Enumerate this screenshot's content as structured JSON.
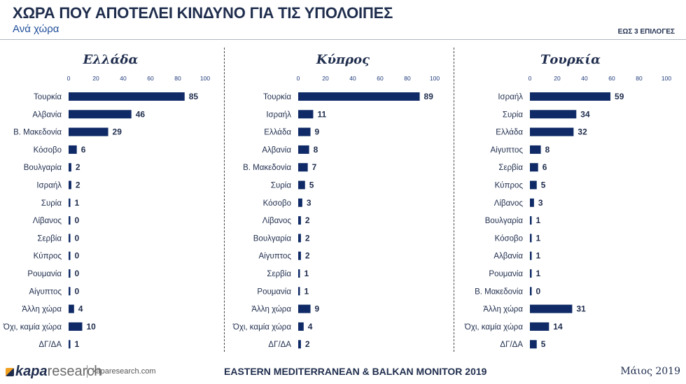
{
  "header": {
    "title": "ΧΩΡΑ ΠΟΥ ΑΠΟΤΕΛΕΙ ΚΙΝΔΥΝΟ ΓΙΑ ΤΙΣ ΥΠΟΛΟΙΠΕΣ",
    "subtitle": "Ανά χώρα",
    "note": "ΕΩΣ 3 ΕΠΙΛΟΓΕΣ"
  },
  "footer": {
    "logo_brand": "kapa",
    "logo_suffix": "research",
    "site": "kaparesearch.com",
    "monitor": "EASTERN MEDITERRANEAN & BALKAN MONITOR 2019",
    "date": "Μάιος 2019"
  },
  "colors": {
    "bar": "#0f2a66",
    "text": "#1f2d4d"
  },
  "chart_data": [
    {
      "type": "bar",
      "orientation": "horizontal",
      "title": "Ελλάδα",
      "xlim": [
        0,
        100
      ],
      "ticks": [
        0,
        20,
        40,
        60,
        80,
        100
      ],
      "categories": [
        "Τουρκία",
        "Αλβανία",
        "Β. Μακεδονία",
        "Κόσοβο",
        "Βουλγαρία",
        "Ισραήλ",
        "Συρία",
        "Λίβανος",
        "Σερβία",
        "Κύπρος",
        "Ρουμανία",
        "Αίγυπτος",
        "Άλλη χώρα",
        "Όχι, καμία χώρα",
        "ΔΓ/ΔΑ"
      ],
      "values": [
        85,
        46,
        29,
        6,
        2,
        2,
        1,
        0,
        0,
        0,
        0,
        0,
        4,
        10,
        1
      ]
    },
    {
      "type": "bar",
      "orientation": "horizontal",
      "title": "Κύπρος",
      "xlim": [
        0,
        100
      ],
      "ticks": [
        0,
        20,
        40,
        60,
        80,
        100
      ],
      "categories": [
        "Τουρκία",
        "Ισραήλ",
        "Ελλάδα",
        "Αλβανία",
        "Β. Μακεδονία",
        "Συρία",
        "Κόσοβο",
        "Λίβανος",
        "Βουλγαρία",
        "Αίγυπτος",
        "Σερβία",
        "Ρουμανία",
        "Άλλη χώρα",
        "Όχι, καμία χώρα",
        "ΔΓ/ΔΑ"
      ],
      "values": [
        89,
        11,
        9,
        8,
        7,
        5,
        3,
        2,
        2,
        2,
        1,
        1,
        9,
        4,
        2
      ]
    },
    {
      "type": "bar",
      "orientation": "horizontal",
      "title": "Τουρκία",
      "xlim": [
        0,
        100
      ],
      "ticks": [
        0,
        20,
        40,
        60,
        80,
        100
      ],
      "categories": [
        "Ισραήλ",
        "Συρία",
        "Ελλάδα",
        "Αίγυπτος",
        "Σερβία",
        "Κύπρος",
        "Λίβανος",
        "Βουλγαρία",
        "Κόσοβο",
        "Αλβανία",
        "Ρουμανία",
        "Β. Μακεδονία",
        "Άλλη χώρα",
        "Όχι, καμία χώρα",
        "ΔΓ/ΔΑ"
      ],
      "values": [
        59,
        34,
        32,
        8,
        6,
        5,
        3,
        1,
        1,
        1,
        1,
        0,
        31,
        14,
        5
      ]
    }
  ]
}
